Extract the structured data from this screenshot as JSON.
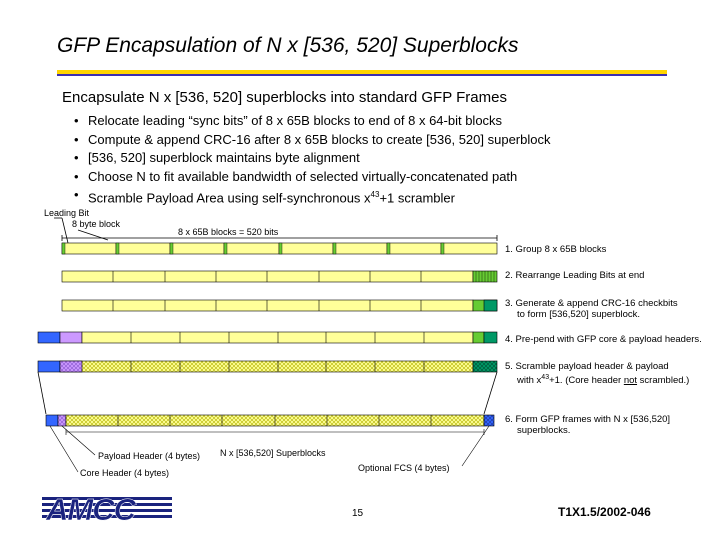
{
  "title": "GFP Encapsulation of N x [536, 520] Superblocks",
  "subtitle": "Encapsulate N x [536, 520] superblocks into standard GFP Frames",
  "bullets": [
    "Relocate leading “sync bits” of 8 x 65B blocks to end of 8 x 64-bit blocks",
    "Compute & append CRC-16 after 8 x 65B blocks to create [536, 520] superblock",
    "[536, 520] superblock maintains byte alignment",
    "Choose N to fit available bandwidth of selected virtually-concatenated path",
    "Scramble Payload Area using self-synchronous x43+1 scrambler"
  ],
  "bullet5_parts": {
    "pre": "Scramble Payload Area using self-synchronous x",
    "sup": "43",
    "post": "+1 scrambler"
  },
  "diagram": {
    "leading_bit_label": "Leading Bit",
    "byte_block_label": "8 byte block",
    "blocks_label": "8 x 65B blocks = 520 bits",
    "steps": [
      "1.  Group 8 x 65B blocks",
      "2.  Rearrange Leading Bits at end",
      "3.  Generate & append CRC-16 checkbits",
      "to form [536,520] superblock.",
      "4.  Pre-pend with GFP core & payload headers.",
      "5.  Scramble payload header & payload",
      "with x43+1.  (Core header not scrambled.)",
      "6.  Form GFP frames with N x [536,520]",
      "superblocks."
    ],
    "step5b_parts": {
      "pre": "with x",
      "sup": "43",
      "mid": "+1.  (Core header ",
      "und": "not",
      "post": " scrambled.)"
    },
    "payload_header_label": "Payload Header (4 bytes)",
    "superblocks_label": "N x [536,520] Superblocks",
    "core_header_label": "Core Header (4 bytes)",
    "fcs_label": "Optional FCS (4 bytes)"
  },
  "footer": {
    "page_number": "15",
    "doc_id": "T1X1.5/2002-046",
    "logo_text": "AMCC"
  },
  "colors": {
    "block": "#ffff99",
    "sync": "#66cc33",
    "crc": "#009966",
    "core": "#3366ff",
    "payload_header": "#cc99ff",
    "rule_gold": "#ffd400",
    "rule_blue": "#3b2fb0"
  }
}
